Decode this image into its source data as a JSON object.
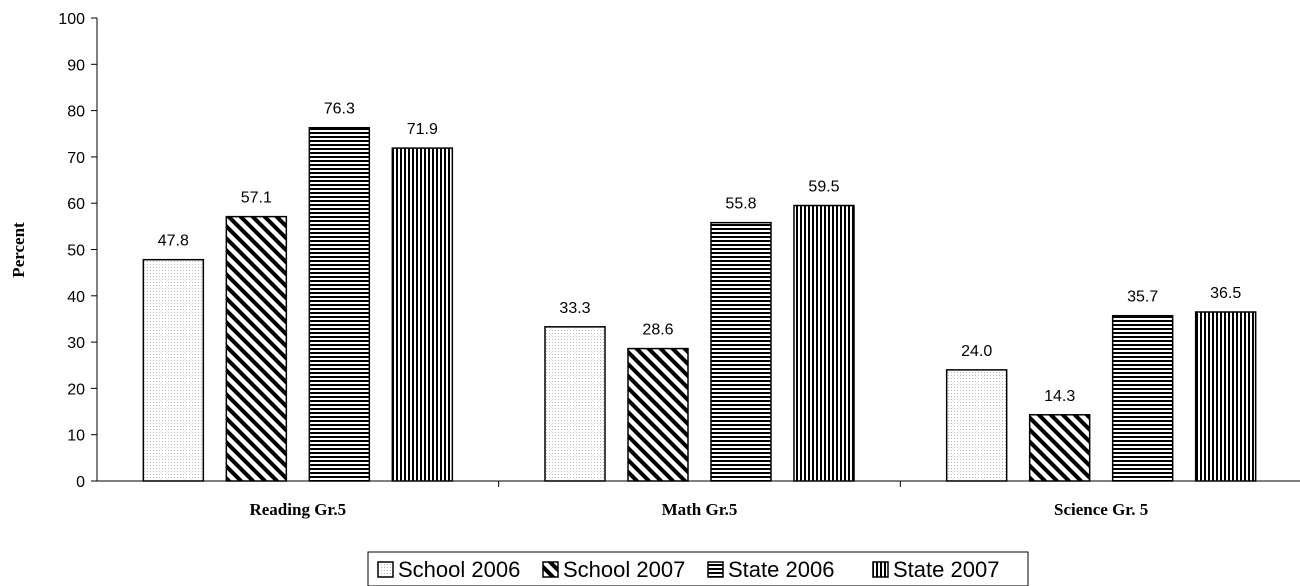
{
  "chart_data": {
    "type": "bar",
    "ylabel": "Percent",
    "xlabel": "",
    "ylim": [
      0,
      100
    ],
    "ytick_step": 10,
    "grid": false,
    "legend_position": "bottom",
    "categories": [
      "Reading Gr.5",
      "Math Gr.5",
      "Science Gr. 5"
    ],
    "series": [
      {
        "name": "School 2006",
        "values": [
          47.8,
          33.3,
          24.0
        ],
        "labels": [
          "47.8",
          "33.3",
          "24.0"
        ],
        "pattern": "dots"
      },
      {
        "name": "School 2007",
        "values": [
          57.1,
          28.6,
          14.3
        ],
        "labels": [
          "57.1",
          "28.6",
          "14.3"
        ],
        "pattern": "diagonal"
      },
      {
        "name": "State 2006",
        "values": [
          76.3,
          55.8,
          35.7
        ],
        "labels": [
          "76.3",
          "55.8",
          "35.7"
        ],
        "pattern": "horizontal"
      },
      {
        "name": "State 2007",
        "values": [
          71.9,
          59.5,
          36.5
        ],
        "labels": [
          "71.9",
          "59.5",
          "36.5"
        ],
        "pattern": "vertical"
      }
    ]
  }
}
